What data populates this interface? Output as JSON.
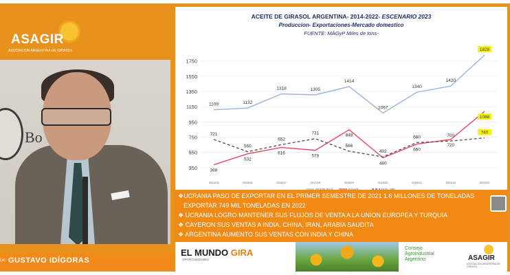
{
  "brand": {
    "name": "ASAGIR",
    "subtitle": "ASOCIACION ARGENTINA DE GIRASOL"
  },
  "speaker": {
    "prefix": "Lic.",
    "name": "GUSTAVO IDÍGORAS",
    "wall_text": "Bo"
  },
  "chart_panel": {
    "title_main": "ACEITE DE GIRASOL ARGENTINA- 2014-2022-",
    "title_scenario": "ESCENARIO 2023",
    "subtitle": "Produccion- Exportaciones-Mercado domestico",
    "source": "FUENTE: MAGyP  Miles de tons-"
  },
  "chart_data": {
    "type": "line",
    "categories": [
      "2014/15",
      "2015/16",
      "2016/17",
      "2017/18",
      "2018/19",
      "2019/20",
      "2020/21",
      "2021/22",
      "2022/23"
    ],
    "ylim": [
      250,
      1900
    ],
    "yticks": [
      350,
      550,
      750,
      950,
      1150,
      1350,
      1550,
      1750
    ],
    "series": [
      {
        "name": "SFSOil Prod",
        "color": "#9ab3dc",
        "style": "solid",
        "values": [
          1109,
          1132,
          1318,
          1305,
          1414,
          1067,
          1340,
          1420,
          1828
        ]
      },
      {
        "name": "Exports",
        "color": "#e6465c",
        "style": "solid",
        "values": [
          388,
          532,
          616,
          578,
          848,
          480,
          660,
          720,
          1088
        ]
      },
      {
        "name": "Dom. Mkt",
        "color": "#555555",
        "style": "dashed",
        "values": [
          721,
          560,
          652,
          731,
          566,
          492,
          680,
          700,
          740
        ]
      }
    ],
    "highlighted_labels": [
      "1828",
      "1088",
      "740"
    ],
    "highlight_color": "#f4f414"
  },
  "bullets": [
    "UCRANIA PASO DE EXPORTAR EN EL PRIMER SEMESTRE DE 2021 1.6 MILLONES DE TONELADAS",
    "EXPORTAR 749 MIL TONELADAS EN 2022",
    "UCRANIA LOGRO MANTENER SUS FLUJOS DE VENTA A LA UNION EUROPEA Y TURQUIA",
    "CAYERON SUS VENTAS A INDIA, CHINA, IRAN, ARABIA SAUDITA",
    "ARGENTINA AUMENTO SUS VENTAS CON INDIA Y CHINA"
  ],
  "sponsors": {
    "mundo": "EL MUNDO",
    "gira": "GIRA",
    "mundo_sub": "OPORTUNIDADES",
    "consejo_1": "Consejo",
    "consejo_2": "Agroindustrial",
    "consejo_3": "Argentino",
    "asagir": "ASAGIR",
    "asagir_sub": "ASOCIACION ARGENTINA DE GIRASOL"
  }
}
